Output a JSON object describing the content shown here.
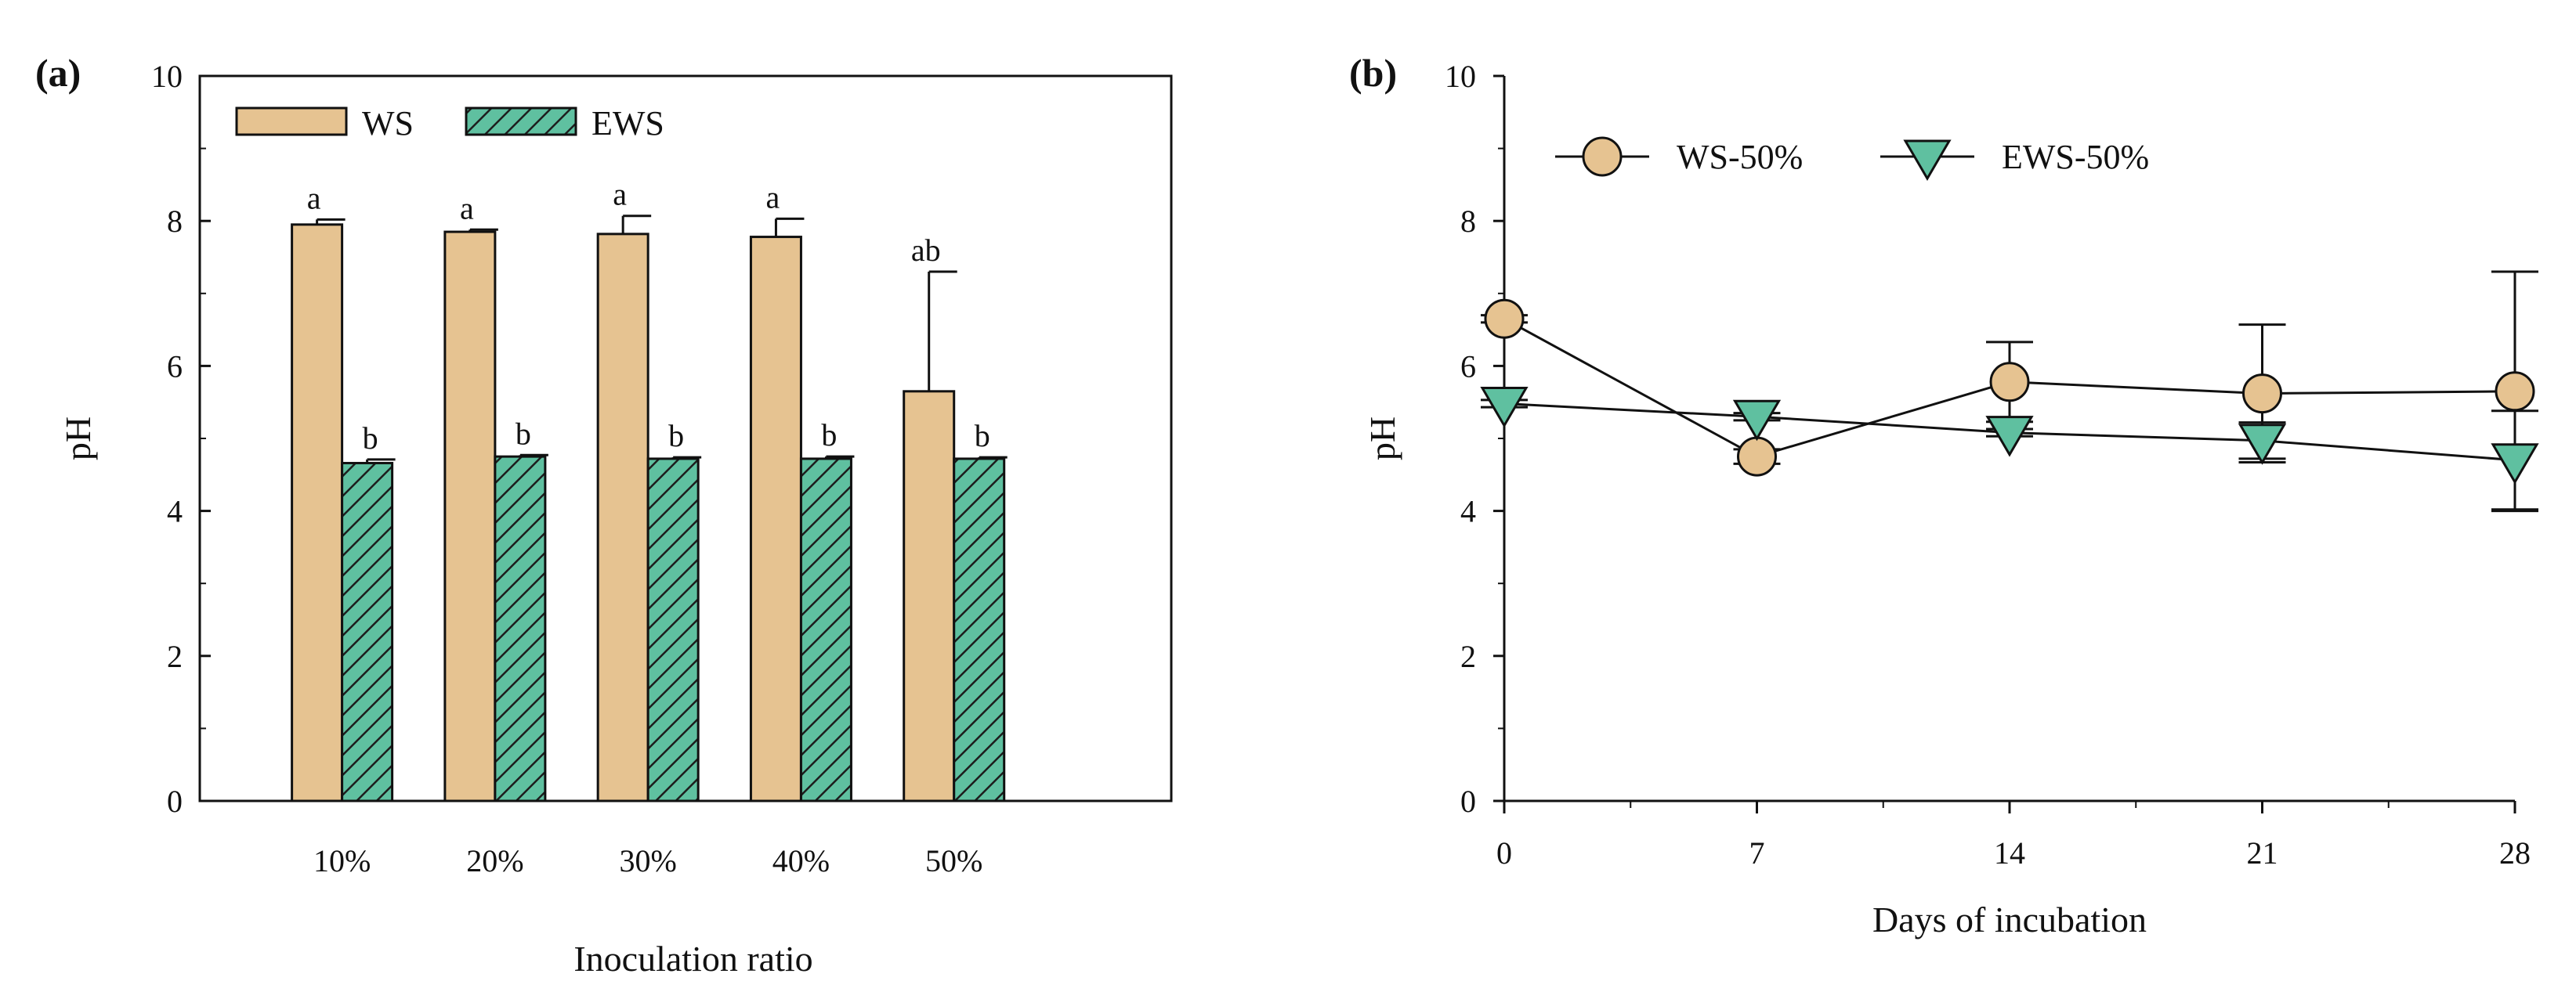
{
  "chart_data": [
    {
      "panel_label": "(a)",
      "type": "bar",
      "xlabel": "Inoculation ratio",
      "ylabel": "pH",
      "ylim": [
        0,
        10
      ],
      "yticks": [
        "0",
        "2",
        "4",
        "6",
        "8",
        "10"
      ],
      "categories": [
        "10%",
        "20%",
        "30%",
        "40%",
        "50%"
      ],
      "series": [
        {
          "name": "WS",
          "color": "#E6C391",
          "pattern": "solid",
          "values": [
            7.95,
            7.85,
            7.82,
            7.78,
            5.65
          ],
          "errors": [
            0.07,
            0.03,
            0.25,
            0.25,
            1.65
          ],
          "labels": [
            "a",
            "a",
            "a",
            "a",
            "ab"
          ]
        },
        {
          "name": "EWS",
          "color": "#5FC0A0",
          "pattern": "hatched",
          "values": [
            4.66,
            4.75,
            4.72,
            4.72,
            4.72
          ],
          "errors": [
            0.05,
            0.02,
            0.02,
            0.03,
            0.02
          ],
          "labels": [
            "b",
            "b",
            "b",
            "b",
            "b"
          ]
        }
      ],
      "legend": "top-left"
    },
    {
      "panel_label": "(b)",
      "type": "line",
      "xlabel": "Days of incubation",
      "ylabel": "pH",
      "ylim": [
        0,
        10
      ],
      "xlim": [
        0,
        28
      ],
      "yticks": [
        "0",
        "2",
        "4",
        "6",
        "8",
        "10"
      ],
      "x": [
        0,
        7,
        14,
        21,
        28
      ],
      "xticks": [
        "0",
        "7",
        "14",
        "21",
        "28"
      ],
      "series": [
        {
          "name": "WS-50%",
          "marker": "circle",
          "color": "#E6C391",
          "values": [
            6.65,
            4.75,
            5.78,
            5.62,
            5.65
          ],
          "errors": [
            0.05,
            0.1,
            0.55,
            0.95,
            1.65
          ]
        },
        {
          "name": "EWS-50%",
          "marker": "triangle-down",
          "color": "#5FC0A0",
          "values": [
            5.48,
            5.3,
            5.08,
            4.97,
            4.7
          ],
          "errors": [
            0.05,
            0.05,
            0.05,
            0.25,
            0.68
          ]
        }
      ],
      "legend": "top-left"
    }
  ]
}
